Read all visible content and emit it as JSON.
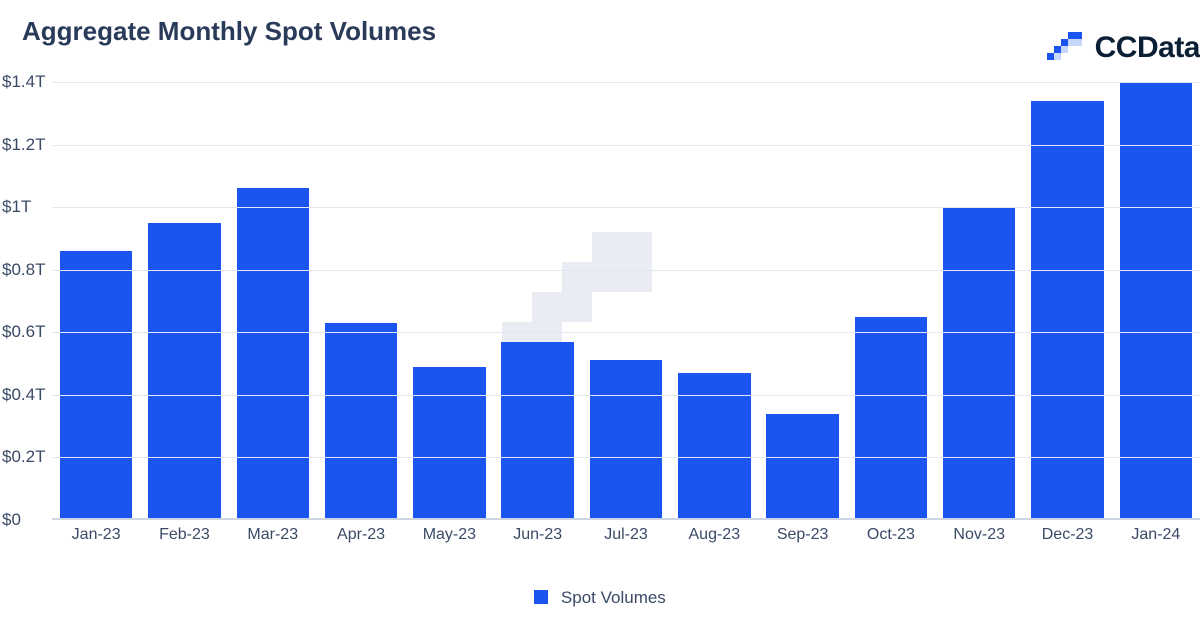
{
  "header": {
    "title": "Aggregate Monthly Spot Volumes",
    "brand": "CCData"
  },
  "chart": {
    "type": "bar",
    "series_name": "Spot Volumes",
    "categories": [
      "Jan-23",
      "Feb-23",
      "Mar-23",
      "Apr-23",
      "May-23",
      "Jun-23",
      "Jul-23",
      "Aug-23",
      "Sep-23",
      "Oct-23",
      "Nov-23",
      "Dec-23",
      "Jan-24"
    ],
    "values": [
      0.86,
      0.95,
      1.06,
      0.63,
      0.49,
      0.57,
      0.51,
      0.47,
      0.34,
      0.65,
      1.0,
      1.34,
      1.4
    ],
    "bar_color": "#1955ee",
    "background_color": "#ffffff",
    "grid_color": "#e2e6ef",
    "axis_line_color": "#cfd6e3",
    "text_color": "#3a4a66",
    "title_color": "#2a3b5a",
    "title_fontsize_pt": 20,
    "axis_fontsize_pt": 13,
    "legend_fontsize_pt": 13,
    "y": {
      "min": 0,
      "max": 1.4,
      "ticks": [
        0,
        0.2,
        0.4,
        0.6,
        0.8,
        1.0,
        1.2,
        1.4
      ],
      "tick_labels": [
        "$0",
        "$0.2T",
        "$0.4T",
        "$0.6T",
        "$0.8T",
        "$1T",
        "$1.2T",
        "$1.4T"
      ],
      "grid": true
    },
    "bar_width_ratio": 0.82,
    "legend_position": "bottom-center",
    "watermark_color": "#e9ecf3"
  },
  "brand_logo": {
    "primary": "#1955ee",
    "secondary": "#c7d6fb"
  }
}
